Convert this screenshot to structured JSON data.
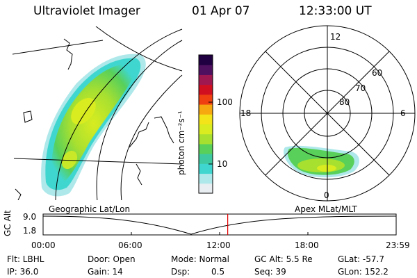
{
  "header": {
    "instrument": "Ultraviolet Imager",
    "date": "01 Apr 07",
    "time": "12:33:00 UT"
  },
  "colorbar": {
    "label": "photon cm⁻²s⁻¹",
    "tick_100": "100",
    "tick_10": "10",
    "colors": [
      "#e8eef2",
      "#aee8ea",
      "#3fd6d0",
      "#3fc9a0",
      "#58d05a",
      "#a8e030",
      "#d8ec20",
      "#f2e418",
      "#f5a810",
      "#ee4010",
      "#d01020",
      "#a01850",
      "#501060",
      "#200040"
    ]
  },
  "left_map": {
    "label": "Geographic Lat/Lon"
  },
  "right_map": {
    "label": "Apex MLat/MLT",
    "mlt_12": "12",
    "mlt_18": "18",
    "mlt_6": "6",
    "mlt_0": "0",
    "lat_60": "60",
    "lat_70": "70",
    "lat_80": "80"
  },
  "altitude_plot": {
    "ylabel": "GC Alt",
    "y_top": "9.0",
    "y_bottom": "1.8",
    "x_ticks": [
      "00:00",
      "06:00",
      "12:00",
      "18:00",
      "23:59"
    ],
    "current_time_fraction": 0.5229
  },
  "status": {
    "filter": "Flt: LBHL",
    "ip": "IP: 36.0",
    "door": "Door: Open",
    "gain": "Gain: 14",
    "mode": "Mode: Normal",
    "dsp_label": "Dsp:",
    "dsp_value": "0.5",
    "gc_alt": "GC Alt: 5.5 Re",
    "seq": "Seq: 39",
    "glat": "GLat: -57.7",
    "glon": "GLon: 152.2"
  }
}
